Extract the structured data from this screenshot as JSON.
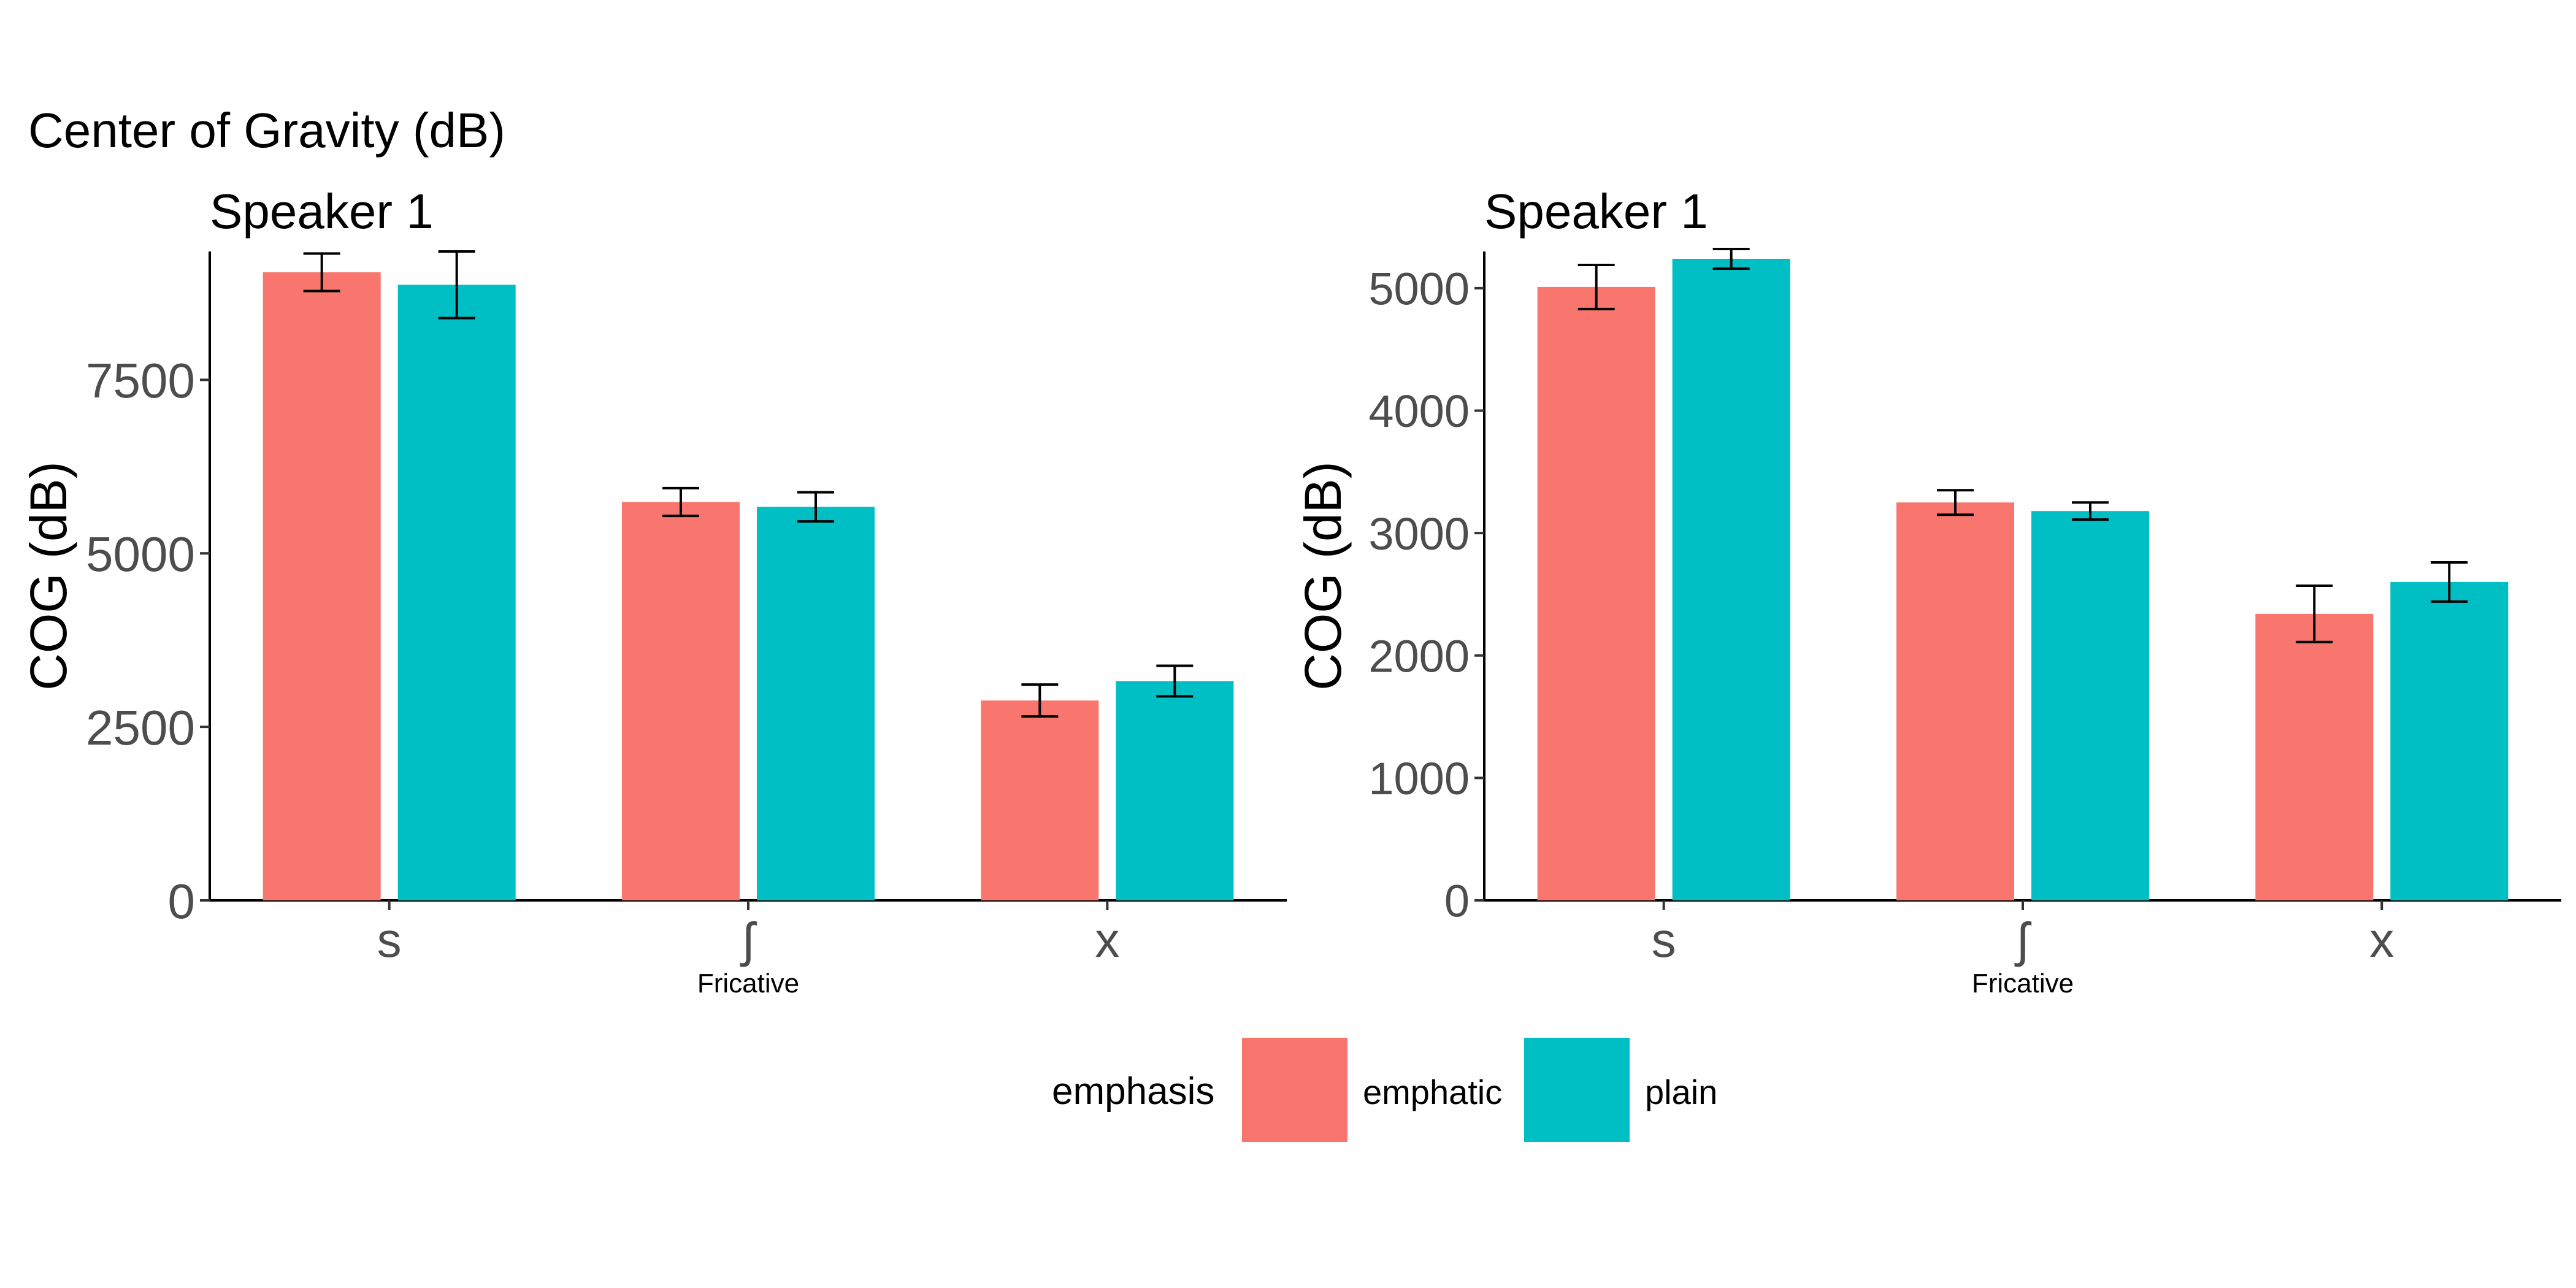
{
  "figure": {
    "title": "Center of Gravity (dB)"
  },
  "colors": {
    "emphatic": "#F8766D",
    "plain": "#00BFC4",
    "error_bar": "#000000",
    "axis": "#000000",
    "tick_text": "#4d4d4d"
  },
  "legend": {
    "title": "emphasis",
    "placement": "bottom",
    "items": [
      {
        "label": "emphatic",
        "color_key": "emphatic"
      },
      {
        "label": "plain",
        "color_key": "plain"
      }
    ]
  },
  "chart_data": [
    {
      "type": "bar",
      "title": "Speaker 1",
      "xlabel": "Fricative",
      "ylabel": "COG (dB)",
      "categories": [
        "s",
        "ʃ",
        "x"
      ],
      "ylim": [
        0,
        9350
      ],
      "yticks": [
        0,
        2500,
        5000,
        7500
      ],
      "ytick_labels": [
        "0",
        "2500",
        "5000",
        "7500"
      ],
      "grid": false,
      "series": [
        {
          "name": "emphatic",
          "values": [
            9050,
            5740,
            2880
          ],
          "error": [
            270,
            200,
            230
          ]
        },
        {
          "name": "plain",
          "values": [
            8870,
            5670,
            3160
          ],
          "error": [
            480,
            210,
            220
          ]
        }
      ]
    },
    {
      "type": "bar",
      "title": "Speaker 1",
      "xlabel": "Fricative",
      "ylabel": "COG (dB)",
      "categories": [
        "s",
        "ʃ",
        "x"
      ],
      "ylim": [
        0,
        5300
      ],
      "yticks": [
        0,
        1000,
        2000,
        3000,
        4000,
        5000
      ],
      "ytick_labels": [
        "0",
        "1000",
        "2000",
        "3000",
        "4000",
        "5000"
      ],
      "grid": false,
      "series": [
        {
          "name": "emphatic",
          "values": [
            5010,
            3250,
            2340
          ],
          "error": [
            180,
            100,
            230
          ]
        },
        {
          "name": "plain",
          "values": [
            5240,
            3180,
            2600
          ],
          "error": [
            80,
            70,
            160
          ]
        }
      ]
    }
  ]
}
